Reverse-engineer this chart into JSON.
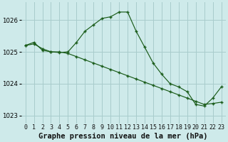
{
  "title": "Graphe pression niveau de la mer (hPa)",
  "background_color": "#ceeaea",
  "grid_color": "#a8cccc",
  "line_color": "#1a5c1a",
  "x_labels": [
    "0",
    "1",
    "2",
    "3",
    "4",
    "5",
    "6",
    "7",
    "8",
    "9",
    "10",
    "11",
    "12",
    "13",
    "14",
    "15",
    "16",
    "17",
    "18",
    "19",
    "20",
    "21",
    "22",
    "23"
  ],
  "series1_diagonal": [
    1025.2,
    1025.25,
    1025.1,
    1025.0,
    1025.0,
    1024.95,
    1024.85,
    1024.75,
    1024.65,
    1024.55,
    1024.45,
    1024.35,
    1024.25,
    1024.15,
    1024.05,
    1023.95,
    1023.85,
    1023.75,
    1023.65,
    1023.55,
    1023.45,
    1023.35,
    1023.38,
    1023.42
  ],
  "series2_peaked": [
    1025.2,
    1025.3,
    1025.05,
    1025.0,
    1024.98,
    1025.0,
    1025.3,
    1025.65,
    1025.85,
    1026.05,
    1026.1,
    1026.25,
    1026.25,
    1025.65,
    1025.15,
    1024.65,
    1024.3,
    1024.0,
    1023.9,
    1023.75,
    1023.35,
    1023.3,
    1023.55,
    1023.9
  ],
  "ylim_min": 1022.75,
  "ylim_max": 1026.55,
  "yticks": [
    1023,
    1024,
    1025,
    1026
  ],
  "title_fontsize": 7.5,
  "tick_fontsize": 6.0
}
